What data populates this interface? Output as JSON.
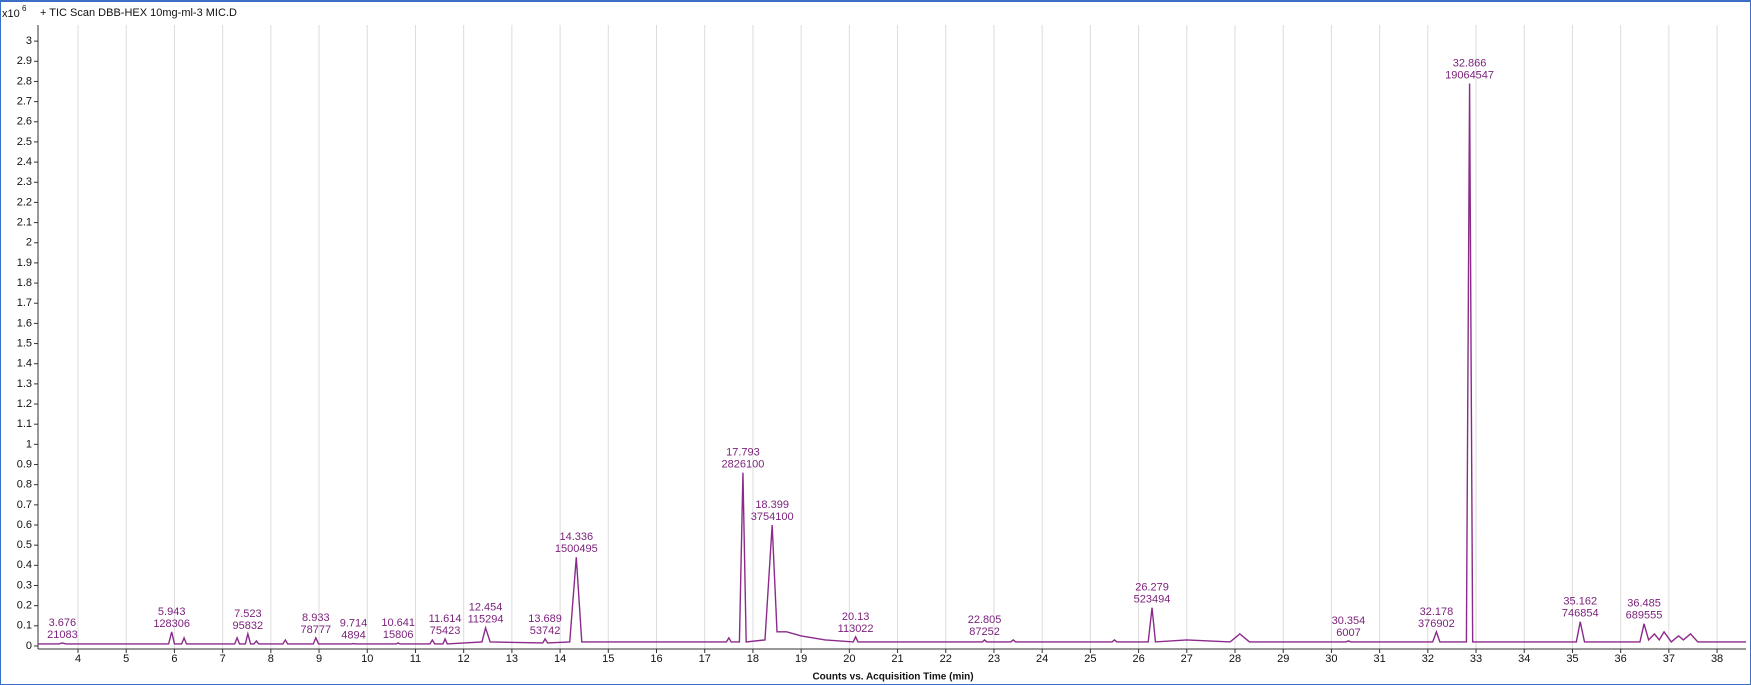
{
  "chart_data": {
    "type": "line",
    "title": "+ TIC Scan DBB-HEX 10mg-ml-3 MIC.D",
    "y_multiplier": "x10",
    "y_multiplier_exponent": "6",
    "x_label": "Counts vs. Acquisition Time (min)",
    "xlim": [
      3.17,
      38.6
    ],
    "ylim": [
      -0.015,
      3.08
    ],
    "xticks": [
      4,
      5,
      6,
      7,
      8,
      9,
      10,
      11,
      12,
      13,
      14,
      15,
      16,
      17,
      18,
      19,
      20,
      21,
      22,
      23,
      24,
      25,
      26,
      27,
      28,
      29,
      30,
      31,
      32,
      33,
      34,
      35,
      36,
      37,
      38
    ],
    "yticks": [
      0,
      0.1,
      0.2,
      0.3,
      0.4,
      0.5,
      0.6,
      0.7,
      0.8,
      0.9,
      1,
      1.1,
      1.2,
      1.3,
      1.4,
      1.5,
      1.6,
      1.7,
      1.8,
      1.9,
      2,
      2.1,
      2.2,
      2.3,
      2.4,
      2.5,
      2.6,
      2.7,
      2.8,
      2.9,
      3
    ],
    "grid": "x",
    "x": [
      3.17,
      3.6,
      3.676,
      3.75,
      5.88,
      5.943,
      6.0,
      6.15,
      6.2,
      6.25,
      7.25,
      7.3,
      7.35,
      7.47,
      7.523,
      7.58,
      7.65,
      7.7,
      7.75,
      8.25,
      8.3,
      8.35,
      8.88,
      8.933,
      8.99,
      9.68,
      9.714,
      9.75,
      10.6,
      10.641,
      10.68,
      11.3,
      11.35,
      11.4,
      11.57,
      11.614,
      11.66,
      12.38,
      12.454,
      12.55,
      13.64,
      13.689,
      13.74,
      14.2,
      14.336,
      14.45,
      15.0,
      17.45,
      17.5,
      17.55,
      17.72,
      17.793,
      17.86,
      18.25,
      18.399,
      18.5,
      18.7,
      19.0,
      19.5,
      20.08,
      20.13,
      20.18,
      22.76,
      22.805,
      22.85,
      23.35,
      23.4,
      23.45,
      25.45,
      25.5,
      25.55,
      26.2,
      26.279,
      26.35,
      27.0,
      27.9,
      28.1,
      28.3,
      30.3,
      30.354,
      30.4,
      32.1,
      32.178,
      32.25,
      32.8,
      32.866,
      32.93,
      34.2,
      35.08,
      35.162,
      35.25,
      36.4,
      36.485,
      36.58,
      36.7,
      36.8,
      36.9,
      37.05,
      37.2,
      37.3,
      37.45,
      37.6,
      38.5,
      38.6
    ],
    "series": [
      {
        "color": "#8b2a8b",
        "values": [
          0.01,
          0.01,
          0.015,
          0.01,
          0.01,
          0.07,
          0.01,
          0.01,
          0.04,
          0.01,
          0.01,
          0.04,
          0.01,
          0.01,
          0.06,
          0.01,
          0.01,
          0.025,
          0.01,
          0.01,
          0.03,
          0.01,
          0.01,
          0.04,
          0.01,
          0.01,
          0.012,
          0.01,
          0.01,
          0.015,
          0.01,
          0.01,
          0.03,
          0.01,
          0.01,
          0.035,
          0.01,
          0.02,
          0.09,
          0.02,
          0.015,
          0.035,
          0.015,
          0.02,
          0.44,
          0.02,
          0.02,
          0.02,
          0.04,
          0.02,
          0.02,
          0.86,
          0.02,
          0.03,
          0.6,
          0.07,
          0.07,
          0.05,
          0.03,
          0.02,
          0.045,
          0.02,
          0.02,
          0.03,
          0.02,
          0.02,
          0.03,
          0.02,
          0.02,
          0.03,
          0.02,
          0.02,
          0.19,
          0.02,
          0.03,
          0.02,
          0.06,
          0.02,
          0.02,
          0.025,
          0.02,
          0.02,
          0.07,
          0.02,
          0.02,
          2.79,
          0.02,
          0.02,
          0.02,
          0.12,
          0.02,
          0.02,
          0.11,
          0.03,
          0.06,
          0.03,
          0.07,
          0.02,
          0.05,
          0.03,
          0.06,
          0.02,
          0.02,
          0.02
        ]
      }
    ],
    "peaks": [
      {
        "time": 3.676,
        "area": 21083
      },
      {
        "time": 5.943,
        "area": 128306
      },
      {
        "time": 7.523,
        "area": 95832
      },
      {
        "time": 8.933,
        "area": 78777
      },
      {
        "time": 9.714,
        "area": 4894
      },
      {
        "time": 10.641,
        "area": 15806
      },
      {
        "time": 11.614,
        "area": 75423
      },
      {
        "time": 12.454,
        "area": 115294
      },
      {
        "time": 13.689,
        "area": 53742
      },
      {
        "time": 14.336,
        "area": 1500495
      },
      {
        "time": 17.793,
        "area": 2826100
      },
      {
        "time": 18.399,
        "area": 3754100
      },
      {
        "time": 20.13,
        "area": 113022
      },
      {
        "time": 22.805,
        "area": 87252
      },
      {
        "time": 26.279,
        "area": 523494
      },
      {
        "time": 30.354,
        "area": 6007
      },
      {
        "time": 32.178,
        "area": 376902
      },
      {
        "time": 32.866,
        "area": 19064547
      },
      {
        "time": 35.162,
        "area": 746854
      },
      {
        "time": 36.485,
        "area": 689555
      }
    ]
  }
}
